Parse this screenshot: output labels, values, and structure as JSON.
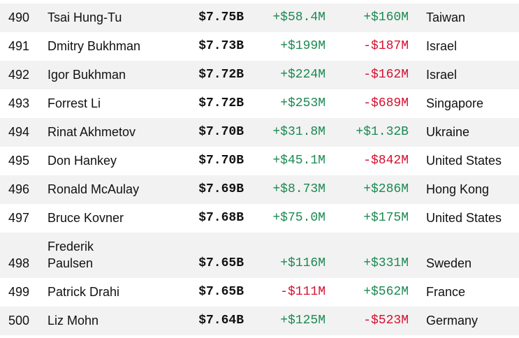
{
  "table": {
    "rows": [
      {
        "rank": "490",
        "name": "Tsai Hung-Tu",
        "net_worth": "$7.75B",
        "change_1": "+$58.4M",
        "change_2": "+$160M",
        "country": "Taiwan"
      },
      {
        "rank": "491",
        "name": "Dmitry Bukhman",
        "net_worth": "$7.73B",
        "change_1": "+$199M",
        "change_2": "-$187M",
        "country": "Israel"
      },
      {
        "rank": "492",
        "name": "Igor Bukhman",
        "net_worth": "$7.72B",
        "change_1": "+$224M",
        "change_2": "-$162M",
        "country": "Israel"
      },
      {
        "rank": "493",
        "name": "Forrest Li",
        "net_worth": "$7.72B",
        "change_1": "+$253M",
        "change_2": "-$689M",
        "country": "Singapore"
      },
      {
        "rank": "494",
        "name": "Rinat Akhmetov",
        "net_worth": "$7.70B",
        "change_1": "+$31.8M",
        "change_2": "+$1.32B",
        "country": "Ukraine"
      },
      {
        "rank": "495",
        "name": "Don Hankey",
        "net_worth": "$7.70B",
        "change_1": "+$45.1M",
        "change_2": "-$842M",
        "country": "United States"
      },
      {
        "rank": "496",
        "name": "Ronald McAulay",
        "net_worth": "$7.69B",
        "change_1": "+$8.73M",
        "change_2": "+$286M",
        "country": "Hong Kong"
      },
      {
        "rank": "497",
        "name": "Bruce Kovner",
        "net_worth": "$7.68B",
        "change_1": "+$75.0M",
        "change_2": "+$175M",
        "country": "United States"
      },
      {
        "rank": "498",
        "name": "Frederik Paulsen",
        "net_worth": "$7.65B",
        "change_1": "+$116M",
        "change_2": "+$331M",
        "country": "Sweden"
      },
      {
        "rank": "499",
        "name": "Patrick Drahi",
        "net_worth": "$7.65B",
        "change_1": "-$111M",
        "change_2": "+$562M",
        "country": "France"
      },
      {
        "rank": "500",
        "name": "Liz Mohn",
        "net_worth": "$7.64B",
        "change_1": "+$125M",
        "change_2": "-$523M",
        "country": "Germany"
      }
    ]
  }
}
